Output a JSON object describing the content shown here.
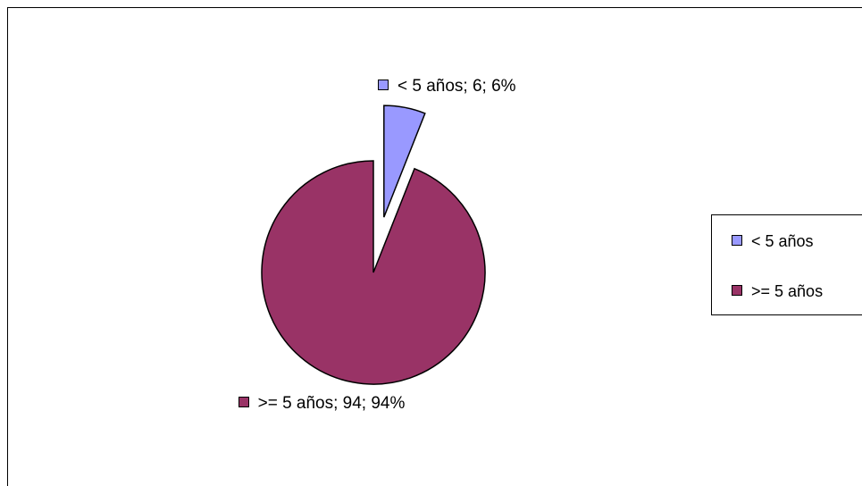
{
  "chart_data": {
    "type": "pie",
    "categories": [
      "< 5 años",
      ">= 5 años"
    ],
    "values": [
      6,
      94
    ],
    "value_labels": [
      "< 5 años; 6; 6%",
      ">= 5 años; 94; 94%"
    ],
    "colors": [
      "#9999ff",
      "#993366"
    ],
    "exploded": [
      true,
      false
    ],
    "legend": "right"
  }
}
